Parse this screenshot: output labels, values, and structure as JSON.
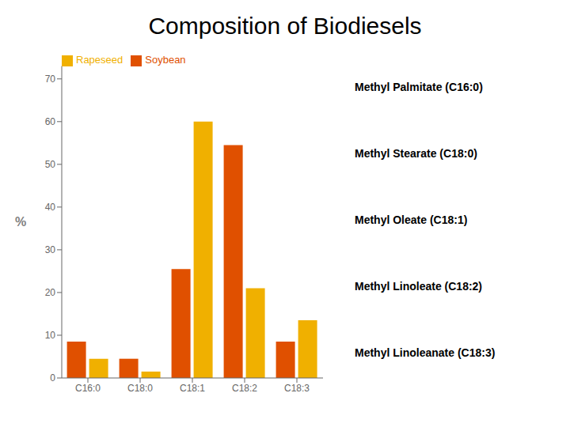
{
  "chart_data": {
    "type": "bar",
    "title": "Composition of Biodiesels",
    "categories": [
      "C16:0",
      "C18:0",
      "C18:1",
      "C18:2",
      "C18:3"
    ],
    "series": [
      {
        "name": "Soybean",
        "color": "#e05000",
        "values": [
          8.5,
          4.5,
          25.5,
          54.5,
          8.5
        ]
      },
      {
        "name": "Rapeseed",
        "color": "#f0b000",
        "values": [
          4.5,
          1.5,
          60,
          21,
          13.5
        ]
      }
    ],
    "y_label": "%",
    "ylim": [
      0,
      73
    ],
    "yticks": [
      0,
      10,
      20,
      30,
      40,
      50,
      60,
      70
    ],
    "grid": false,
    "legend": "upper left",
    "annotations": [
      "Methyl Palmitate (C16:0)",
      "Methyl Stearate (C18:0)",
      "Methyl Oleate (C18:1)",
      "Methyl Linoleate (C18:2)",
      "Methyl Linoleanate (C18:3)"
    ]
  }
}
